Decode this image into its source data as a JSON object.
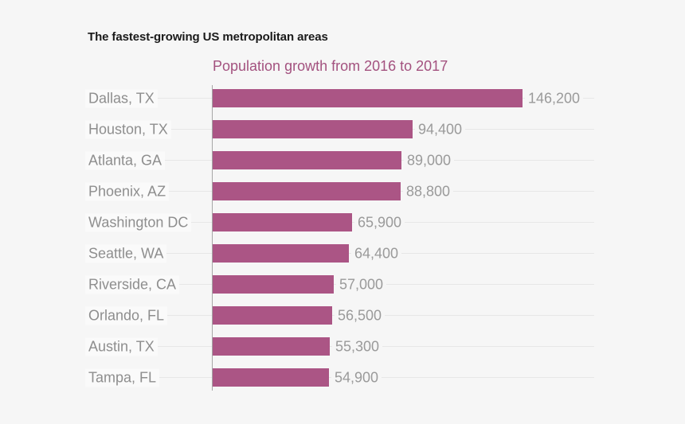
{
  "header": {
    "title": "The fastest-growing US metropolitan areas",
    "subtitle": "Population growth from 2016 to 2017"
  },
  "chart_data": {
    "type": "bar",
    "orientation": "horizontal",
    "title": "The fastest-growing US metropolitan areas",
    "subtitle": "Population growth from 2016 to 2017",
    "categories": [
      "Dallas, TX",
      "Houston, TX",
      "Atlanta, GA",
      "Phoenix, AZ",
      "Washington DC",
      "Seattle, WA",
      "Riverside, CA",
      "Orlando, FL",
      "Austin, TX",
      "Tampa, FL"
    ],
    "values": [
      146200,
      94400,
      89000,
      88800,
      65900,
      64400,
      57000,
      56500,
      55300,
      54900
    ],
    "value_labels": [
      "146,200",
      "94,400",
      "89,000",
      "88,800",
      "65,900",
      "64,400",
      "57,000",
      "56,500",
      "55,300",
      "54,900"
    ],
    "xlim": [
      0,
      146200
    ],
    "grid": "light horizontal gridline per row",
    "legend": "none",
    "colors": {
      "bar": "#ab5585",
      "subtitle": "#a3527f",
      "background": "#f6f6f6",
      "gridline": "#e7e7e7",
      "axis": "#a6a6a6",
      "category_label": "#8e8e8e",
      "value_label": "#9a9a9a",
      "title": "#1a1a1a"
    }
  }
}
